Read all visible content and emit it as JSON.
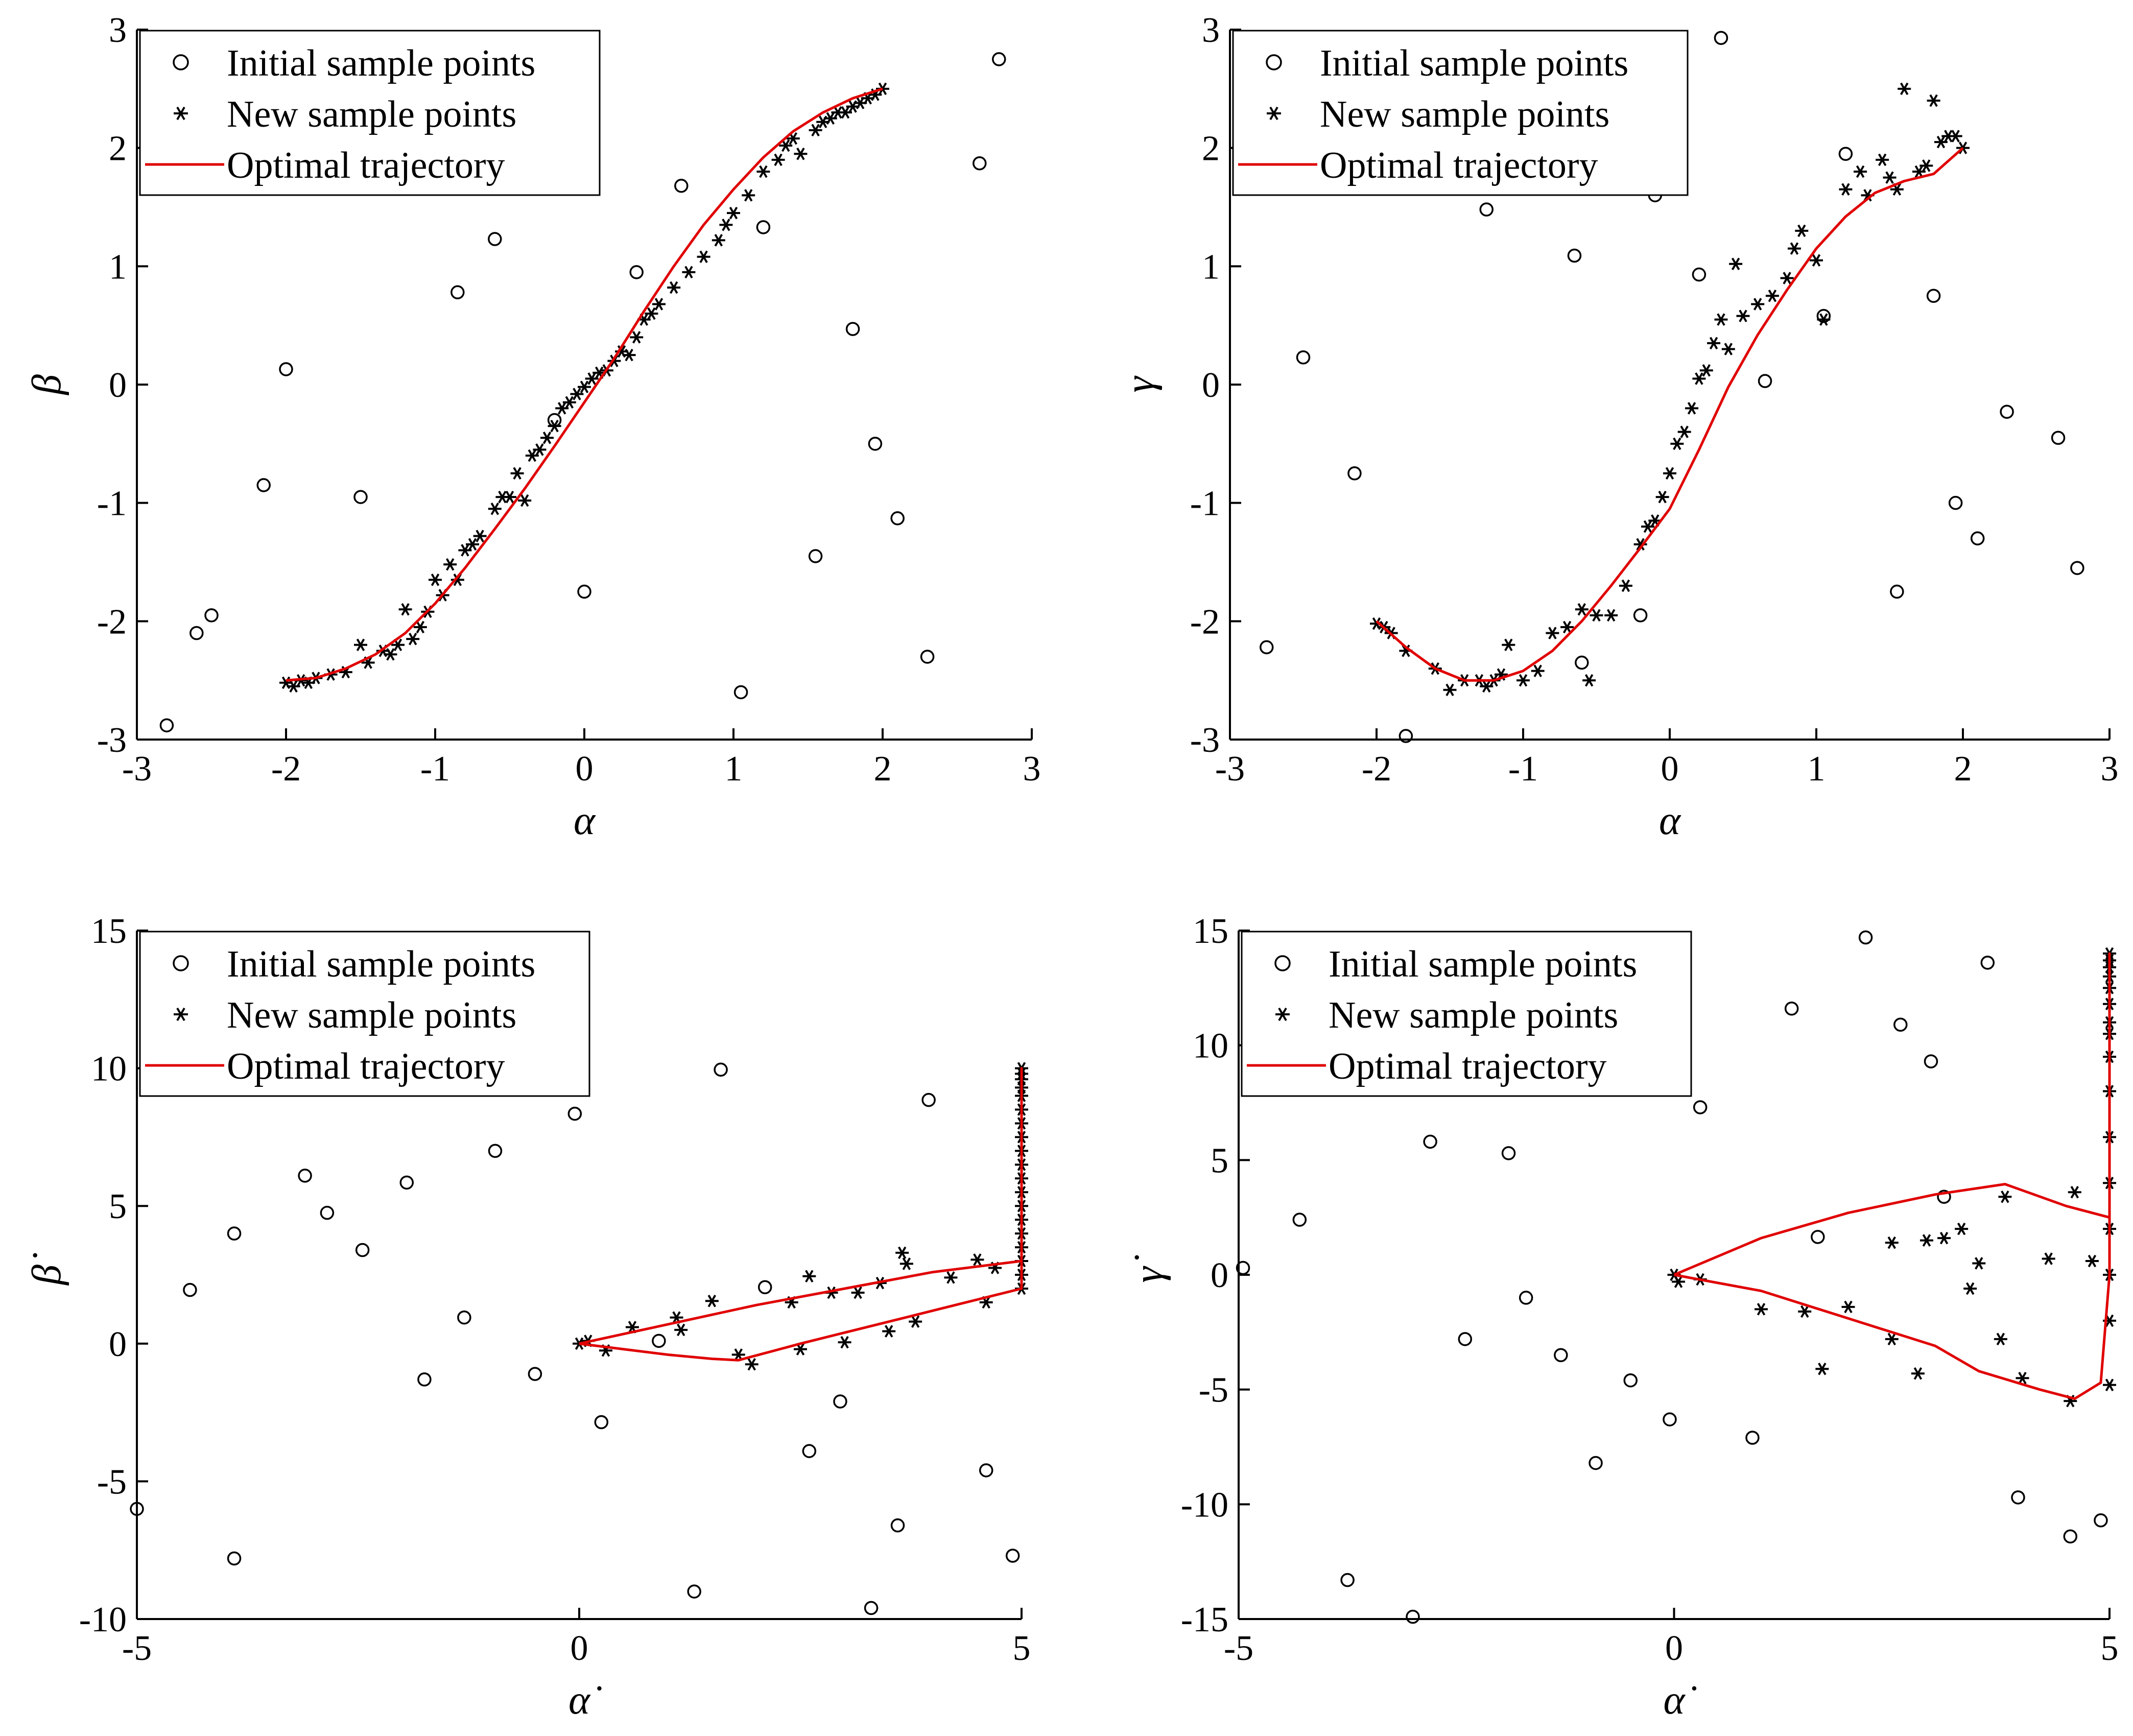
{
  "chart_data": [
    {
      "type": "scatter",
      "name": "alpha-beta",
      "xlabel": "α",
      "ylabel": "β",
      "xlim": [
        -3,
        3
      ],
      "ylim": [
        -3,
        3
      ],
      "xticks": [
        -3,
        -2,
        -1,
        0,
        1,
        2,
        3
      ],
      "yticks": [
        -3,
        -2,
        -1,
        0,
        1,
        2,
        3
      ],
      "legend": [
        "Initial sample points",
        "New sample points",
        "Optimal trajectory"
      ],
      "legend_location": "top-left",
      "series": [
        {
          "name": "Initial sample points",
          "marker": "circle",
          "x": [
            -2.8,
            -2.6,
            -2.5,
            -2.15,
            -2.0,
            -1.5,
            -0.85,
            -0.6,
            -0.2,
            0.0,
            0.35,
            0.65,
            1.05,
            1.2,
            1.55,
            1.8,
            1.95,
            2.1,
            2.3,
            2.65,
            2.78
          ],
          "y": [
            -2.88,
            -2.1,
            -1.95,
            -0.85,
            0.13,
            -0.95,
            0.78,
            1.23,
            -0.3,
            -1.75,
            0.95,
            1.68,
            -2.6,
            1.33,
            -1.45,
            0.47,
            -0.5,
            -1.13,
            -2.3,
            1.87,
            2.75
          ]
        },
        {
          "name": "New sample points",
          "marker": "asterisk",
          "x": [
            -2.0,
            -1.95,
            -1.9,
            -1.85,
            -1.8,
            -1.7,
            -1.6,
            -1.5,
            -1.45,
            -1.35,
            -1.3,
            -1.25,
            -1.2,
            -1.15,
            -1.1,
            -1.05,
            -1.0,
            -0.95,
            -0.9,
            -0.85,
            -0.8,
            -0.75,
            -0.7,
            -0.6,
            -0.55,
            -0.5,
            -0.45,
            -0.4,
            -0.35,
            -0.3,
            -0.25,
            -0.2,
            -0.15,
            -0.1,
            -0.05,
            0.0,
            0.05,
            0.1,
            0.15,
            0.2,
            0.25,
            0.3,
            0.35,
            0.4,
            0.45,
            0.5,
            0.6,
            0.7,
            0.8,
            0.9,
            0.95,
            1.0,
            1.1,
            1.2,
            1.3,
            1.35,
            1.4,
            1.45,
            1.55,
            1.6,
            1.65,
            1.7,
            1.75,
            1.8,
            1.85,
            1.9,
            1.95,
            2.0
          ],
          "y": [
            -2.52,
            -2.55,
            -2.5,
            -2.52,
            -2.48,
            -2.45,
            -2.43,
            -2.2,
            -2.35,
            -2.25,
            -2.28,
            -2.2,
            -1.9,
            -2.15,
            -2.05,
            -1.92,
            -1.65,
            -1.78,
            -1.52,
            -1.65,
            -1.4,
            -1.35,
            -1.28,
            -1.05,
            -0.95,
            -0.95,
            -0.75,
            -0.98,
            -0.6,
            -0.55,
            -0.45,
            -0.35,
            -0.2,
            -0.15,
            -0.08,
            -0.02,
            0.05,
            0.1,
            0.12,
            0.2,
            0.28,
            0.25,
            0.4,
            0.55,
            0.6,
            0.68,
            0.82,
            0.95,
            1.08,
            1.22,
            1.35,
            1.45,
            1.6,
            1.8,
            1.9,
            2.02,
            2.08,
            1.95,
            2.15,
            2.22,
            2.25,
            2.3,
            2.3,
            2.35,
            2.38,
            2.42,
            2.45,
            2.5
          ]
        },
        {
          "name": "Optimal trajectory",
          "marker": "line",
          "x": [
            -2.0,
            -1.8,
            -1.6,
            -1.4,
            -1.2,
            -1.0,
            -0.8,
            -0.6,
            -0.4,
            -0.2,
            0.0,
            0.2,
            0.4,
            0.6,
            0.8,
            1.0,
            1.2,
            1.4,
            1.6,
            1.8,
            2.0
          ],
          "y": [
            -2.5,
            -2.48,
            -2.4,
            -2.28,
            -2.1,
            -1.85,
            -1.55,
            -1.22,
            -0.88,
            -0.52,
            -0.15,
            0.22,
            0.62,
            1.0,
            1.35,
            1.65,
            1.92,
            2.14,
            2.3,
            2.42,
            2.5
          ]
        }
      ]
    },
    {
      "type": "scatter",
      "name": "alpha-gamma",
      "xlabel": "α",
      "ylabel": "γ",
      "xlim": [
        -3,
        3
      ],
      "ylim": [
        -3,
        3
      ],
      "xticks": [
        -3,
        -2,
        -1,
        0,
        1,
        2,
        3
      ],
      "yticks": [
        -3,
        -2,
        -1,
        0,
        1,
        2,
        3
      ],
      "legend": [
        "Initial sample points",
        "New sample points",
        "Optimal trajectory"
      ],
      "legend_location": "top-left",
      "series": [
        {
          "name": "Initial sample points",
          "marker": "circle",
          "x": [
            -2.75,
            -2.5,
            -2.15,
            -1.8,
            -1.25,
            -0.65,
            -0.6,
            -0.2,
            -0.1,
            0.2,
            0.35,
            0.65,
            1.05,
            1.2,
            1.55,
            1.8,
            1.95,
            2.1,
            2.3,
            2.65,
            2.78
          ],
          "y": [
            -2.22,
            0.23,
            -0.75,
            -2.97,
            1.48,
            1.09,
            -2.35,
            -1.95,
            1.6,
            0.93,
            2.93,
            0.03,
            0.58,
            1.95,
            -1.75,
            0.75,
            -1.0,
            -1.3,
            -0.23,
            -0.45,
            -1.55
          ]
        },
        {
          "name": "New sample points",
          "marker": "asterisk",
          "x": [
            -2.0,
            -1.95,
            -1.9,
            -1.8,
            -1.6,
            -1.5,
            -1.4,
            -1.3,
            -1.25,
            -1.2,
            -1.15,
            -1.1,
            -1.0,
            -0.9,
            -0.8,
            -0.7,
            -0.6,
            -0.55,
            -0.5,
            -0.4,
            -0.3,
            -0.2,
            -0.15,
            -0.1,
            -0.05,
            0.0,
            0.05,
            0.1,
            0.15,
            0.2,
            0.25,
            0.3,
            0.35,
            0.4,
            0.45,
            0.5,
            0.6,
            0.7,
            0.8,
            0.85,
            0.9,
            1.0,
            1.05,
            1.2,
            1.3,
            1.35,
            1.45,
            1.5,
            1.55,
            1.6,
            1.7,
            1.75,
            1.8,
            1.85,
            1.9,
            1.95,
            2.0
          ],
          "y": [
            -2.02,
            -2.05,
            -2.1,
            -2.25,
            -2.4,
            -2.58,
            -2.5,
            -2.5,
            -2.55,
            -2.5,
            -2.45,
            -2.2,
            -2.5,
            -2.42,
            -2.1,
            -2.05,
            -1.9,
            -2.5,
            -1.95,
            -1.95,
            -1.7,
            -1.35,
            -1.2,
            -1.15,
            -0.95,
            -0.75,
            -0.5,
            -0.4,
            -0.2,
            0.05,
            0.12,
            0.35,
            0.55,
            0.3,
            1.02,
            0.58,
            0.68,
            0.75,
            0.9,
            1.15,
            1.3,
            1.05,
            0.55,
            1.65,
            1.8,
            1.6,
            1.9,
            1.75,
            1.65,
            2.5,
            1.8,
            1.85,
            2.4,
            2.05,
            2.1,
            2.1,
            2.0
          ]
        },
        {
          "name": "Optimal trajectory",
          "marker": "line",
          "x": [
            -2.0,
            -1.8,
            -1.6,
            -1.4,
            -1.2,
            -1.0,
            -0.8,
            -0.6,
            -0.4,
            -0.2,
            0.0,
            0.2,
            0.4,
            0.6,
            0.8,
            1.0,
            1.2,
            1.4,
            1.6,
            1.8,
            2.0
          ],
          "y": [
            -2.0,
            -2.22,
            -2.4,
            -2.5,
            -2.5,
            -2.42,
            -2.25,
            -2.0,
            -1.7,
            -1.38,
            -1.05,
            -0.55,
            -0.02,
            0.42,
            0.8,
            1.15,
            1.42,
            1.62,
            1.72,
            1.78,
            2.0
          ]
        }
      ]
    },
    {
      "type": "scatter",
      "name": "alphadot-betadot",
      "xlabel": "α̇",
      "ylabel": "β̇",
      "xlim": [
        -5,
        5
      ],
      "ylim": [
        -10,
        15
      ],
      "xticks": [
        -5,
        0,
        5
      ],
      "yticks": [
        -10,
        -5,
        0,
        5,
        10,
        15
      ],
      "legend": [
        "Initial sample points",
        "New sample points",
        "Optimal trajectory"
      ],
      "legend_location": "top-left",
      "series": [
        {
          "name": "Initial sample points",
          "marker": "circle",
          "x": [
            -5.0,
            -4.4,
            -3.9,
            -3.9,
            -3.1,
            -2.85,
            -2.45,
            -1.95,
            -1.75,
            -1.3,
            -0.95,
            -0.5,
            -0.05,
            0.25,
            0.9,
            1.3,
            1.6,
            2.1,
            2.6,
            2.95,
            3.3,
            3.6,
            3.95,
            4.6,
            4.9
          ],
          "y": [
            -6.0,
            1.95,
            4.0,
            -7.8,
            6.1,
            4.75,
            3.4,
            5.85,
            -1.3,
            0.95,
            7.0,
            -1.1,
            8.35,
            -2.85,
            0.1,
            -9.0,
            9.95,
            2.05,
            -3.9,
            -2.1,
            -9.6,
            -6.6,
            8.85,
            -4.6,
            -7.7
          ]
        },
        {
          "name": "New sample points",
          "marker": "asterisk",
          "x": [
            0.0,
            0.1,
            0.3,
            0.6,
            1.1,
            1.15,
            1.5,
            1.8,
            1.95,
            2.4,
            2.6,
            2.5,
            2.85,
            3.0,
            3.15,
            3.4,
            3.5,
            3.65,
            3.7,
            3.8,
            4.2,
            4.5,
            4.6,
            4.7,
            5.0,
            5.0,
            5.0,
            5.0,
            5.0,
            5.0,
            5.0,
            5.0,
            5.0,
            5.0,
            5.0,
            5.0,
            5.0,
            5.0,
            5.0,
            5.0,
            5.0,
            5.0,
            5.0
          ],
          "y": [
            0.0,
            0.1,
            -0.25,
            0.6,
            0.95,
            0.5,
            1.55,
            -0.4,
            -0.75,
            1.5,
            2.45,
            -0.2,
            1.85,
            0.05,
            1.85,
            2.2,
            0.45,
            3.3,
            2.9,
            0.8,
            2.4,
            3.05,
            1.5,
            2.75,
            2.0,
            2.5,
            3.0,
            3.5,
            4.0,
            4.5,
            5.0,
            5.5,
            6.0,
            6.5,
            7.0,
            7.5,
            8.0,
            8.5,
            9.0,
            9.3,
            9.6,
            9.8,
            10.0
          ]
        },
        {
          "name": "Optimal trajectory",
          "marker": "line",
          "x": [
            0.0,
            0.5,
            1.0,
            1.5,
            1.8,
            2.5,
            3.0,
            3.5,
            4.0,
            4.5,
            5.0,
            5.0,
            5.0,
            5.0,
            5.0,
            4.0,
            3.0,
            2.0,
            1.0,
            0.0
          ],
          "y": [
            0.0,
            -0.2,
            -0.4,
            -0.55,
            -0.6,
            0.0,
            0.4,
            0.8,
            1.2,
            1.6,
            2.0,
            3.0,
            6.0,
            10.0,
            3.0,
            2.6,
            2.0,
            1.4,
            0.7,
            0.0
          ]
        }
      ]
    },
    {
      "type": "scatter",
      "name": "alphadot-gammadot",
      "xlabel": "α̇",
      "ylabel": "γ̇",
      "xlim": [
        -5,
        5
      ],
      "ylim": [
        -15,
        15
      ],
      "xticks": [
        -5,
        0,
        5
      ],
      "yticks": [
        -15,
        -10,
        -5,
        0,
        5,
        10,
        15
      ],
      "legend": [
        "Initial sample points",
        "New sample points",
        "Optimal trajectory"
      ],
      "legend_location": "top-left",
      "series": [
        {
          "name": "Initial sample points",
          "marker": "circle",
          "x": [
            -4.95,
            -4.3,
            -3.75,
            -3.0,
            -2.8,
            -2.4,
            -1.9,
            -1.7,
            -1.3,
            -0.9,
            -0.5,
            -0.05,
            0.3,
            0.9,
            1.35,
            1.65,
            2.2,
            3.1,
            2.6,
            2.95,
            3.6,
            3.95,
            4.55,
            4.9
          ],
          "y": [
            0.3,
            2.4,
            -13.3,
            -14.9,
            5.8,
            -2.8,
            5.3,
            -1.0,
            -3.5,
            -8.2,
            -4.6,
            -6.3,
            7.3,
            -7.1,
            11.6,
            1.65,
            14.7,
            3.4,
            10.9,
            9.3,
            13.6,
            -9.7,
            -11.4,
            -10.7
          ]
        },
        {
          "name": "New sample points",
          "marker": "asterisk",
          "x": [
            0.0,
            0.05,
            0.3,
            1.0,
            1.5,
            1.7,
            2.0,
            2.5,
            2.5,
            2.8,
            2.9,
            3.1,
            3.3,
            3.4,
            3.5,
            3.75,
            3.8,
            4.0,
            4.3,
            4.55,
            4.6,
            4.8,
            5.0,
            5.0,
            5.0,
            5.0,
            5.0,
            5.0,
            5.0,
            5.0,
            5.0,
            5.0,
            5.0,
            5.0,
            5.0,
            5.0,
            5.0,
            5.0
          ],
          "y": [
            0.0,
            -0.3,
            -0.2,
            -1.5,
            -1.6,
            -4.1,
            -1.4,
            1.4,
            -2.8,
            -4.3,
            1.5,
            1.6,
            2.0,
            -0.6,
            0.5,
            -2.8,
            3.4,
            -4.5,
            0.7,
            -5.5,
            3.6,
            0.6,
            -4.8,
            -2.0,
            0.0,
            2.0,
            4.0,
            6.0,
            8.0,
            9.5,
            10.5,
            11.0,
            11.8,
            12.5,
            13.0,
            13.4,
            13.7,
            14.0
          ]
        },
        {
          "name": "Optimal trajectory",
          "marker": "line",
          "x": [
            0.0,
            1.0,
            2.0,
            3.0,
            3.8,
            4.5,
            5.0,
            5.0,
            5.0,
            5.0,
            4.9,
            4.6,
            4.2,
            3.5,
            3.0,
            2.0,
            1.0,
            0.0
          ],
          "y": [
            0.0,
            1.6,
            2.7,
            3.5,
            3.95,
            3.0,
            2.5,
            6.0,
            14.0,
            0.0,
            -4.7,
            -5.4,
            -5.0,
            -4.2,
            -3.1,
            -1.9,
            -0.7,
            0.0
          ]
        }
      ]
    }
  ]
}
